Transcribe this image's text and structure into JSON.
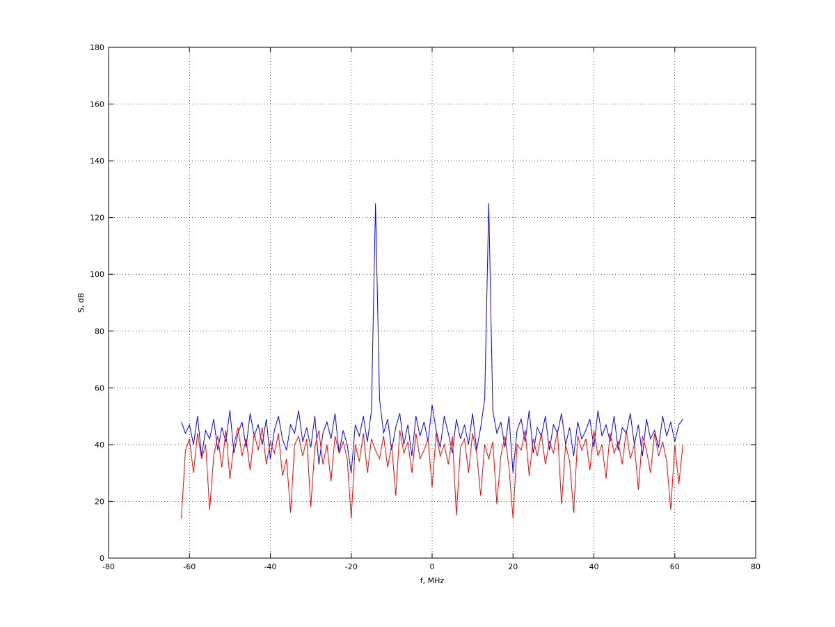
{
  "chart_data": {
    "type": "line",
    "xlabel": "f, MHz",
    "ylabel": "S, dB",
    "xlim": [
      -80,
      80
    ],
    "xticks": [
      -80,
      -60,
      -40,
      -20,
      0,
      20,
      40,
      60,
      80
    ],
    "ylim": [
      0,
      180
    ],
    "yticks": [
      0,
      20,
      40,
      60,
      80,
      100,
      120,
      140,
      160,
      180
    ],
    "grid": true,
    "x": [
      -62,
      -61,
      -60,
      -59,
      -58,
      -57,
      -56,
      -55,
      -54,
      -53,
      -52,
      -51,
      -50,
      -49,
      -48,
      -47,
      -46,
      -45,
      -44,
      -43,
      -42,
      -41,
      -40,
      -39,
      -38,
      -37,
      -36,
      -35,
      -34,
      -33,
      -32,
      -31,
      -30,
      -29,
      -28,
      -27,
      -26,
      -25,
      -24,
      -23,
      -22,
      -21,
      -20,
      -19,
      -18,
      -17,
      -16,
      -15,
      -14,
      -13,
      -12,
      -11,
      -10,
      -9,
      -8,
      -7,
      -6,
      -5,
      -4,
      -3,
      -2,
      -1,
      0,
      1,
      2,
      3,
      4,
      5,
      6,
      7,
      8,
      9,
      10,
      11,
      12,
      13,
      14,
      15,
      16,
      17,
      18,
      19,
      20,
      21,
      22,
      23,
      24,
      25,
      26,
      27,
      28,
      29,
      30,
      31,
      32,
      33,
      34,
      35,
      36,
      37,
      38,
      39,
      40,
      41,
      42,
      43,
      44,
      45,
      46,
      47,
      48,
      49,
      50,
      51,
      52,
      53,
      54,
      55,
      56,
      57,
      58,
      59,
      60,
      61,
      62
    ],
    "series": [
      {
        "color": "#0000ff",
        "values": [
          48,
          44,
          47,
          40,
          50,
          36,
          45,
          42,
          49,
          38,
          46,
          41,
          52,
          37,
          44,
          48,
          39,
          51,
          43,
          47,
          40,
          49,
          35,
          45,
          50,
          42,
          38,
          47,
          44,
          52,
          41,
          46,
          39,
          50,
          33,
          44,
          48,
          42,
          51,
          37,
          45,
          40,
          30,
          47,
          43,
          50,
          41,
          52,
          125,
          56,
          44,
          49,
          38,
          46,
          51,
          40,
          47,
          36,
          50,
          43,
          48,
          41,
          54,
          45,
          39,
          50,
          44,
          37,
          49,
          42,
          47,
          40,
          51,
          38,
          46,
          56,
          125,
          52,
          44,
          48,
          39,
          50,
          30,
          45,
          49,
          41,
          52,
          37,
          46,
          43,
          50,
          38,
          47,
          44,
          51,
          40,
          46,
          36,
          48,
          42,
          45,
          49,
          39,
          52,
          43,
          47,
          41,
          50,
          38,
          46,
          44,
          51,
          40,
          47,
          36,
          49,
          42,
          45,
          39,
          50,
          43,
          48,
          41,
          47,
          49
        ]
      },
      {
        "color": "#ff0000",
        "values": [
          14,
          38,
          42,
          30,
          44,
          35,
          40,
          17,
          36,
          43,
          32,
          45,
          28,
          40,
          46,
          36,
          42,
          31,
          44,
          38,
          46,
          33,
          41,
          37,
          44,
          29,
          35,
          16,
          40,
          43,
          36,
          42,
          18,
          39,
          45,
          33,
          40,
          27,
          43,
          37,
          41,
          35,
          14,
          40,
          34,
          44,
          30,
          42,
          38,
          35,
          43,
          32,
          40,
          22,
          45,
          37,
          41,
          30,
          44,
          35,
          38,
          42,
          25,
          44,
          36,
          40,
          33,
          43,
          15,
          39,
          42,
          30,
          44,
          37,
          22,
          40,
          35,
          41,
          19,
          36,
          43,
          32,
          14,
          40,
          38,
          45,
          29,
          42,
          36,
          44,
          33,
          41,
          37,
          45,
          19,
          40,
          34,
          16,
          43,
          38,
          42,
          31,
          45,
          36,
          40,
          28,
          44,
          37,
          41,
          33,
          45,
          35,
          40,
          24,
          43,
          38,
          30,
          44,
          36,
          41,
          34,
          17,
          40,
          26,
          40
        ]
      }
    ]
  }
}
